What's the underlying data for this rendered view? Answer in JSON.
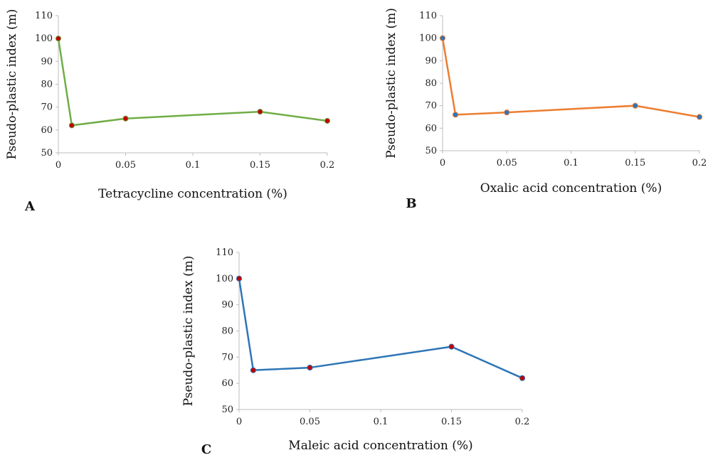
{
  "chart_data": [
    {
      "type": "line",
      "panel_label": "A",
      "xlabel": "Tetracycline concentration (%)",
      "ylabel": "Pseudo-plastic index (m)",
      "x": [
        0,
        0.01,
        0.05,
        0.15,
        0.2
      ],
      "series": [
        {
          "values": [
            100,
            62,
            65,
            68,
            64
          ],
          "line_color": "#70ad47",
          "marker_color": "#c00000"
        }
      ],
      "x_ticks": [
        "0",
        "0.05",
        "0.1",
        "0.15",
        "0.2"
      ],
      "y_ticks": [
        "50",
        "60",
        "70",
        "80",
        "90",
        "100",
        "110"
      ],
      "xlim": [
        0,
        0.2
      ],
      "ylim": [
        50,
        110
      ],
      "grid": false
    },
    {
      "type": "line",
      "panel_label": "B",
      "xlabel": "Oxalic acid concentration (%)",
      "ylabel": "Pseudo-plastic index (m)",
      "x": [
        0,
        0.01,
        0.05,
        0.15,
        0.2
      ],
      "series": [
        {
          "values": [
            100,
            66,
            67,
            70,
            65
          ],
          "line_color": "#ed7d31",
          "marker_color": "#2e75b6"
        }
      ],
      "x_ticks": [
        "0",
        "0.05",
        "0.1",
        "0.15",
        "0.2"
      ],
      "y_ticks": [
        "50",
        "60",
        "70",
        "80",
        "90",
        "100",
        "110"
      ],
      "xlim": [
        0,
        0.2
      ],
      "ylim": [
        50,
        110
      ],
      "grid": false
    },
    {
      "type": "line",
      "panel_label": "C",
      "xlabel": "Maleic acid concentration (%)",
      "ylabel": "Pseudo-plastic index (m)",
      "x": [
        0,
        0.01,
        0.05,
        0.15,
        0.2
      ],
      "series": [
        {
          "values": [
            100,
            65,
            66,
            74,
            62
          ],
          "line_color": "#2e75b6",
          "marker_color": "#c00000"
        }
      ],
      "x_ticks": [
        "0",
        "0.05",
        "0.1",
        "0.15",
        "0.2"
      ],
      "y_ticks": [
        "50",
        "60",
        "70",
        "80",
        "90",
        "100",
        "110"
      ],
      "xlim": [
        0,
        0.2
      ],
      "ylim": [
        50,
        110
      ],
      "grid": false
    }
  ]
}
